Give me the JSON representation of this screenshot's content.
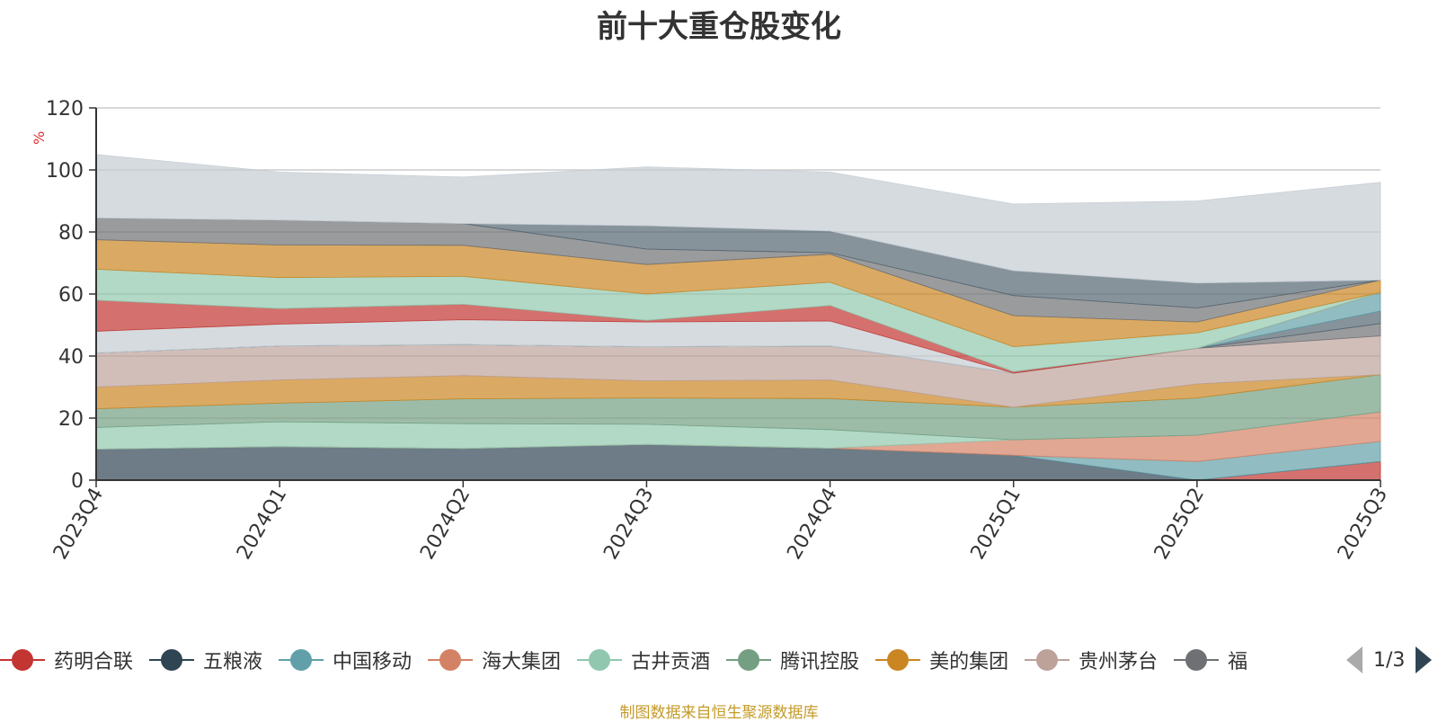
{
  "title": "前十大重仓股变化",
  "source_note": "制图数据来自恒生聚源数据库",
  "legend_pager": "1/3",
  "chart_data": {
    "type": "area",
    "stacked": true,
    "ylabel": "%",
    "ylim": [
      0,
      120
    ],
    "yticks": [
      0,
      20,
      40,
      60,
      80,
      100,
      120
    ],
    "grid": true,
    "legend_position": "bottom",
    "categories": [
      "2023Q4",
      "2024Q1",
      "2024Q2",
      "2024Q3",
      "2024Q4",
      "2025Q1",
      "2025Q2",
      "2025Q3"
    ],
    "series": [
      {
        "name": "药明合联",
        "color": "#c23531",
        "values": [
          0,
          0,
          0,
          0,
          0,
          0,
          0,
          6
        ]
      },
      {
        "name": "五粮液",
        "color": "#2f4554",
        "values": [
          10,
          10.8,
          10.2,
          11.5,
          10.3,
          8,
          0,
          0
        ]
      },
      {
        "name": "中国移动",
        "color": "#61a0a8",
        "values": [
          0,
          0,
          0,
          0,
          0,
          0,
          6,
          6.5
        ]
      },
      {
        "name": "海大集团",
        "color": "#d48265",
        "values": [
          0,
          0,
          0,
          0,
          0,
          5,
          8.5,
          9.5
        ]
      },
      {
        "name": "古井贡酒",
        "color": "#91c7ae",
        "values": [
          7,
          8,
          8,
          6.5,
          6,
          0,
          0,
          0
        ]
      },
      {
        "name": "腾讯控股",
        "color": "#749f83",
        "values": [
          6,
          6,
          8,
          8.5,
          10,
          10.5,
          12,
          12
        ]
      },
      {
        "name": "美的集团",
        "color": "#ca8622",
        "values": [
          7,
          7.5,
          7.5,
          5.5,
          6,
          0,
          4.5,
          0
        ]
      },
      {
        "name": "贵州茅台",
        "color": "#bda29a",
        "values": [
          11,
          11,
          10,
          11,
          11,
          11,
          11.5,
          12.5
        ]
      },
      {
        "name": "福",
        "color": "#6e7074",
        "values": [
          0,
          0,
          0,
          0,
          0,
          0,
          0,
          4
        ]
      },
      {
        "name": "",
        "color": "#546570",
        "values": [
          0,
          0,
          0,
          0,
          0,
          0,
          0,
          4
        ]
      },
      {
        "name": "",
        "color": "#61a0a8",
        "values": [
          0,
          0,
          0,
          0,
          0,
          0,
          0,
          6
        ]
      },
      {
        "name": "",
        "color": "#c4ccd3",
        "values": [
          7,
          7,
          8,
          8,
          8,
          0,
          0,
          0
        ]
      },
      {
        "name": "",
        "color": "#c23531",
        "values": [
          10,
          5,
          5,
          0.5,
          5,
          0.5,
          0,
          0
        ]
      },
      {
        "name": "",
        "color": "#91c7ae",
        "values": [
          10,
          10,
          9,
          8.5,
          7.5,
          8,
          5,
          0
        ]
      },
      {
        "name": "",
        "color": "#ca8622",
        "values": [
          9.5,
          10.5,
          10,
          9.5,
          9,
          10,
          3.5,
          4
        ]
      },
      {
        "name": "",
        "color": "#6e7074",
        "values": [
          7,
          8,
          7,
          5,
          0.5,
          6.5,
          4.5,
          0
        ]
      },
      {
        "name": "",
        "color": "#546570",
        "values": [
          0,
          0,
          0,
          7.5,
          7,
          8,
          8,
          0
        ]
      },
      {
        "name": "",
        "color": "#c4ccd3",
        "values": [
          20.5,
          15.5,
          15,
          19,
          19,
          21.5,
          26.5,
          31.5
        ]
      }
    ]
  }
}
